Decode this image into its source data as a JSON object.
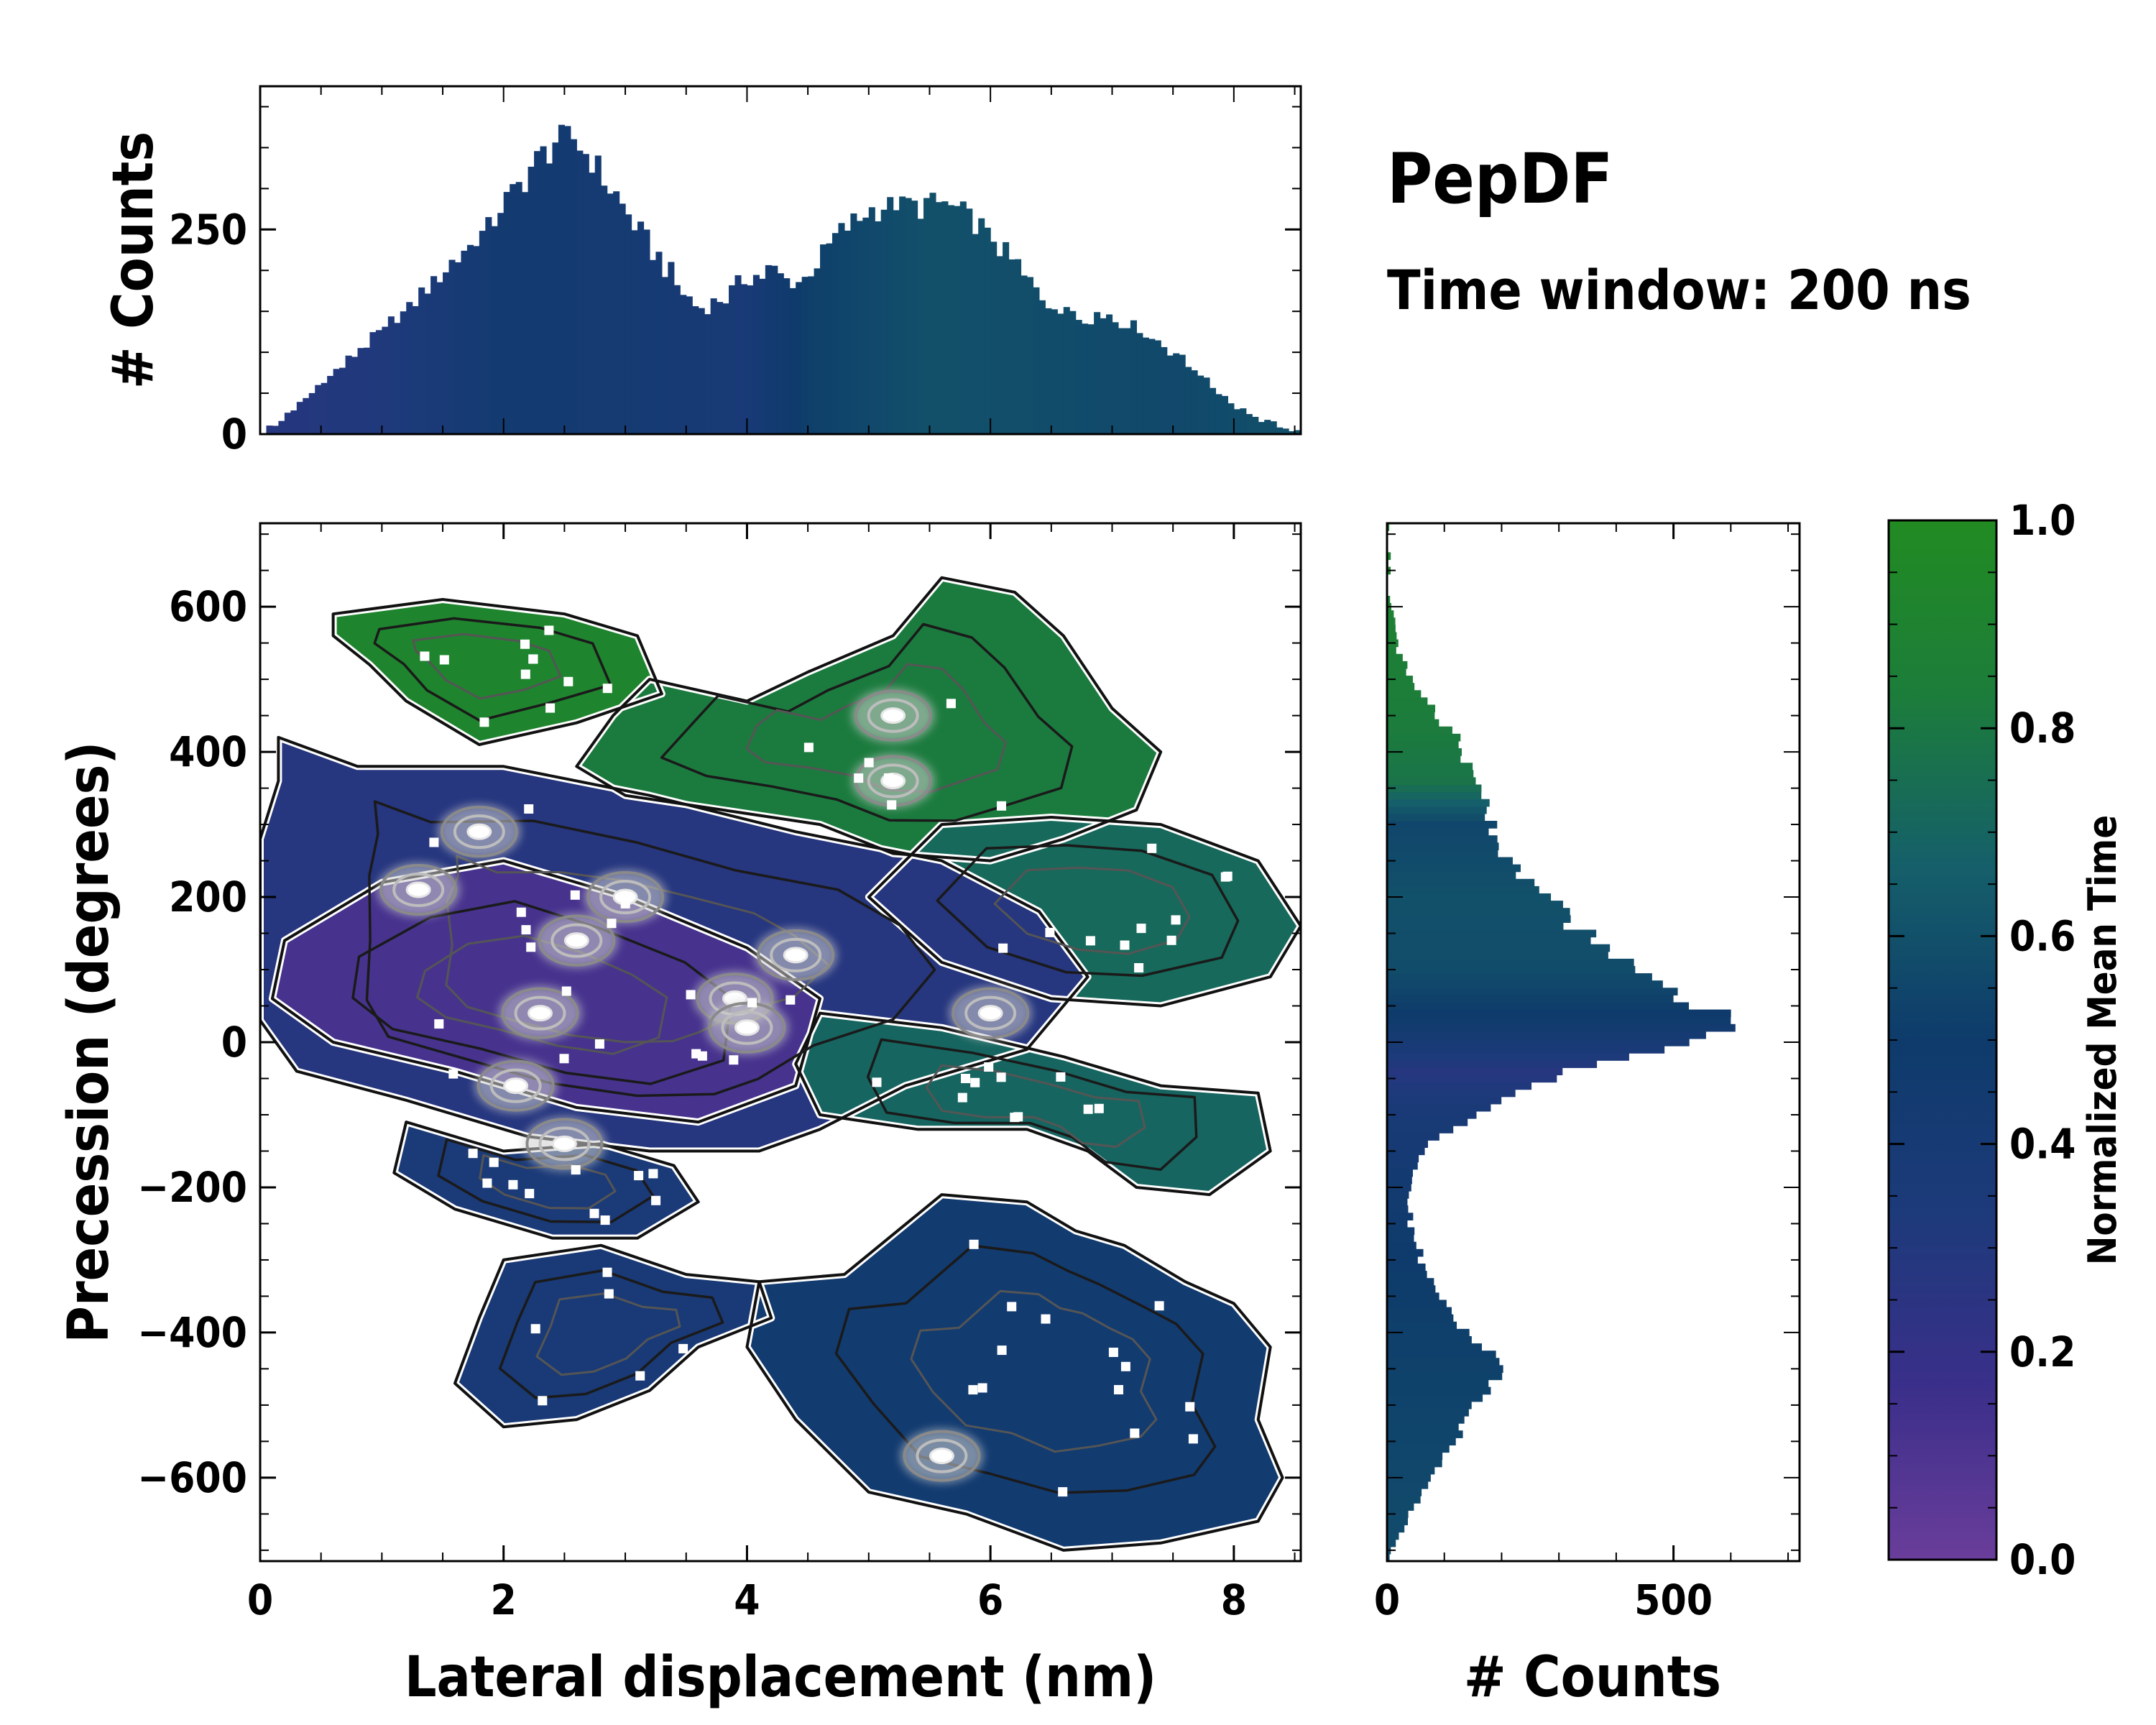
{
  "title": "PepDF",
  "subtitle": "Time window: 200 ns",
  "chart_data": [
    {
      "id": "main",
      "type": "heatmap",
      "description_note": "2D histogram colored by normalized mean time with density contours",
      "xlabel": "Lateral displacement (nm)",
      "ylabel": "Precession (degrees)",
      "xlim": [
        0,
        8.55
      ],
      "ylim": [
        -715,
        715
      ],
      "xticks": [
        0,
        2,
        4,
        6,
        8
      ],
      "yticks": [
        -600,
        -400,
        -200,
        0,
        200,
        400,
        600
      ],
      "xtick_labels": [
        "0",
        "2",
        "4",
        "6",
        "8"
      ],
      "ytick_labels": [
        "−600",
        "−400",
        "−200",
        "0",
        "200",
        "400",
        "600"
      ],
      "regions": [
        {
          "name": "upper-left",
          "t": 0.92,
          "poly": [
            [
              0.6,
              590
            ],
            [
              1.5,
              610
            ],
            [
              2.5,
              590
            ],
            [
              3.1,
              560
            ],
            [
              3.3,
              480
            ],
            [
              2.6,
              440
            ],
            [
              1.8,
              410
            ],
            [
              1.2,
              470
            ],
            [
              0.9,
              520
            ],
            [
              0.6,
              560
            ]
          ]
        },
        {
          "name": "upper-right",
          "t": 0.82,
          "poly": [
            [
              3.2,
              500
            ],
            [
              4.0,
              470
            ],
            [
              4.5,
              510
            ],
            [
              5.2,
              560
            ],
            [
              5.6,
              640
            ],
            [
              6.2,
              620
            ],
            [
              6.6,
              560
            ],
            [
              7.0,
              460
            ],
            [
              7.4,
              400
            ],
            [
              7.2,
              320
            ],
            [
              6.6,
              280
            ],
            [
              6.0,
              250
            ],
            [
              5.2,
              260
            ],
            [
              4.6,
              300
            ],
            [
              3.8,
              320
            ],
            [
              3.0,
              340
            ],
            [
              2.6,
              380
            ],
            [
              2.9,
              450
            ]
          ]
        },
        {
          "name": "right-wing",
          "t": 0.72,
          "poly": [
            [
              5.6,
              300
            ],
            [
              6.5,
              310
            ],
            [
              7.4,
              300
            ],
            [
              8.2,
              250
            ],
            [
              8.55,
              160
            ],
            [
              8.3,
              90
            ],
            [
              7.4,
              50
            ],
            [
              6.5,
              60
            ],
            [
              5.6,
              110
            ],
            [
              5.0,
              200
            ]
          ]
        },
        {
          "name": "central",
          "t": 0.28,
          "poly": [
            [
              0.15,
              420
            ],
            [
              0.8,
              380
            ],
            [
              2.0,
              380
            ],
            [
              3.2,
              340
            ],
            [
              4.4,
              290
            ],
            [
              5.6,
              250
            ],
            [
              6.4,
              180
            ],
            [
              6.8,
              90
            ],
            [
              6.3,
              -10
            ],
            [
              5.3,
              -60
            ],
            [
              4.6,
              -120
            ],
            [
              4.1,
              -150
            ],
            [
              3.2,
              -150
            ],
            [
              2.2,
              -130
            ],
            [
              1.2,
              -80
            ],
            [
              0.3,
              -40
            ],
            [
              0.0,
              30
            ],
            [
              0.0,
              150
            ],
            [
              0.0,
              280
            ],
            [
              0.15,
              360
            ]
          ]
        },
        {
          "name": "core",
          "t": 0.12,
          "poly": [
            [
              0.2,
              140
            ],
            [
              1.0,
              220
            ],
            [
              2.0,
              250
            ],
            [
              3.0,
              200
            ],
            [
              4.0,
              130
            ],
            [
              4.6,
              60
            ],
            [
              4.4,
              -60
            ],
            [
              3.6,
              -110
            ],
            [
              2.6,
              -90
            ],
            [
              1.6,
              -40
            ],
            [
              0.6,
              0
            ],
            [
              0.1,
              60
            ]
          ]
        },
        {
          "name": "mid-right",
          "t": 0.7,
          "poly": [
            [
              4.6,
              40
            ],
            [
              5.6,
              20
            ],
            [
              6.6,
              -20
            ],
            [
              7.4,
              -60
            ],
            [
              8.2,
              -70
            ],
            [
              8.3,
              -150
            ],
            [
              7.8,
              -210
            ],
            [
              7.2,
              -200
            ],
            [
              6.8,
              -150
            ],
            [
              6.3,
              -120
            ],
            [
              5.4,
              -120
            ],
            [
              4.6,
              -100
            ],
            [
              4.4,
              -30
            ]
          ]
        },
        {
          "name": "lower-left-lobe",
          "t": 0.36,
          "poly": [
            [
              1.2,
              -110
            ],
            [
              2.0,
              -150
            ],
            [
              2.8,
              -140
            ],
            [
              3.4,
              -170
            ],
            [
              3.6,
              -220
            ],
            [
              3.1,
              -270
            ],
            [
              2.4,
              -270
            ],
            [
              1.6,
              -230
            ],
            [
              1.1,
              -180
            ]
          ]
        },
        {
          "name": "lower-left",
          "t": 0.38,
          "poly": [
            [
              2.0,
              -300
            ],
            [
              2.8,
              -280
            ],
            [
              3.5,
              -320
            ],
            [
              4.1,
              -330
            ],
            [
              4.2,
              -380
            ],
            [
              3.6,
              -420
            ],
            [
              3.2,
              -480
            ],
            [
              2.6,
              -520
            ],
            [
              2.0,
              -530
            ],
            [
              1.6,
              -470
            ],
            [
              1.8,
              -380
            ]
          ]
        },
        {
          "name": "lower-right",
          "t": 0.45,
          "poly": [
            [
              4.1,
              -330
            ],
            [
              4.8,
              -320
            ],
            [
              5.6,
              -210
            ],
            [
              6.3,
              -220
            ],
            [
              6.7,
              -260
            ],
            [
              7.1,
              -280
            ],
            [
              7.6,
              -330
            ],
            [
              8.0,
              -360
            ],
            [
              8.3,
              -420
            ],
            [
              8.2,
              -520
            ],
            [
              8.4,
              -600
            ],
            [
              8.2,
              -660
            ],
            [
              7.4,
              -690
            ],
            [
              6.6,
              -700
            ],
            [
              5.8,
              -650
            ],
            [
              5.0,
              -620
            ],
            [
              4.4,
              -520
            ],
            [
              4.0,
              -420
            ]
          ]
        }
      ],
      "hotspots": [
        [
          1.8,
          290
        ],
        [
          1.3,
          210
        ],
        [
          2.6,
          140
        ],
        [
          3.0,
          200
        ],
        [
          2.3,
          40
        ],
        [
          3.9,
          60
        ],
        [
          4.4,
          120
        ],
        [
          4.0,
          20
        ],
        [
          2.5,
          -140
        ],
        [
          2.1,
          -60
        ],
        [
          5.2,
          450
        ],
        [
          5.2,
          360
        ],
        [
          6.0,
          40
        ],
        [
          5.6,
          -570
        ]
      ]
    },
    {
      "id": "top-histogram",
      "type": "bar",
      "ylabel": "# Counts",
      "xlim": [
        0,
        8.55
      ],
      "ylim": [
        0,
        425
      ],
      "yticks": [
        0,
        250
      ],
      "ytick_labels": [
        "0",
        "250"
      ],
      "bin_width": 0.05,
      "profile_x": [
        0,
        0.2,
        0.5,
        0.8,
        1.0,
        1.2,
        1.5,
        1.8,
        2.0,
        2.2,
        2.4,
        2.6,
        2.8,
        3.0,
        3.2,
        3.4,
        3.6,
        3.8,
        4.0,
        4.2,
        4.4,
        4.6,
        4.8,
        5.0,
        5.2,
        5.4,
        5.6,
        5.8,
        6.0,
        6.2,
        6.4,
        6.6,
        6.8,
        7.0,
        7.2,
        7.4,
        7.6,
        7.8,
        8.0,
        8.2,
        8.4,
        8.55
      ],
      "profile_y": [
        0,
        20,
        60,
        100,
        125,
        150,
        200,
        240,
        280,
        320,
        355,
        360,
        320,
        270,
        230,
        190,
        150,
        165,
        190,
        200,
        180,
        215,
        255,
        270,
        280,
        280,
        282,
        270,
        240,
        210,
        170,
        150,
        145,
        145,
        130,
        110,
        90,
        60,
        35,
        20,
        8,
        0
      ],
      "color_t_x": [
        0,
        1.0,
        2.0,
        3.0,
        4.0,
        4.5,
        5.5,
        6.5,
        7.5,
        8.55
      ],
      "color_t": [
        0.28,
        0.32,
        0.44,
        0.42,
        0.38,
        0.52,
        0.6,
        0.58,
        0.56,
        0.6
      ]
    },
    {
      "id": "right-histogram",
      "type": "bar",
      "orientation": "horizontal",
      "xlabel": "# Counts",
      "xlim": [
        0,
        720
      ],
      "ylim": [
        -715,
        715
      ],
      "xticks": [
        0,
        500
      ],
      "xtick_labels": [
        "0",
        "500"
      ],
      "bin_width": 10,
      "profile_y": [
        -715,
        -680,
        -650,
        -600,
        -560,
        -500,
        -460,
        -430,
        -400,
        -360,
        -300,
        -250,
        -200,
        -150,
        -100,
        -60,
        -20,
        20,
        60,
        100,
        140,
        180,
        220,
        260,
        300,
        340,
        380,
        420,
        480,
        540,
        600,
        715
      ],
      "profile_x": [
        0,
        20,
        40,
        80,
        110,
        150,
        200,
        190,
        140,
        100,
        60,
        40,
        40,
        60,
        150,
        250,
        400,
        640,
        500,
        420,
        370,
        300,
        250,
        200,
        180,
        170,
        150,
        120,
        60,
        20,
        5,
        0
      ],
      "color_t_y": [
        -715,
        -300,
        -100,
        -40,
        40,
        100,
        200,
        300,
        360,
        420,
        600,
        715
      ],
      "color_t": [
        0.58,
        0.5,
        0.38,
        0.28,
        0.5,
        0.58,
        0.6,
        0.55,
        0.78,
        0.82,
        0.88,
        0.9
      ]
    },
    {
      "id": "colorbar",
      "type": "colorbar",
      "label": "Normalized Mean Time",
      "range": [
        0.0,
        1.0
      ],
      "ticks": [
        0.0,
        0.2,
        0.4,
        0.6,
        0.8,
        1.0
      ],
      "tick_labels": [
        "0.0",
        "0.2",
        "0.4",
        "0.6",
        "0.8",
        "1.0"
      ],
      "colormap": [
        "#6a3d9a",
        "#3a2f8a",
        "#1d3a7a",
        "#0e3b6b",
        "#155f6a",
        "#1c7d3a",
        "#228B22"
      ]
    }
  ]
}
